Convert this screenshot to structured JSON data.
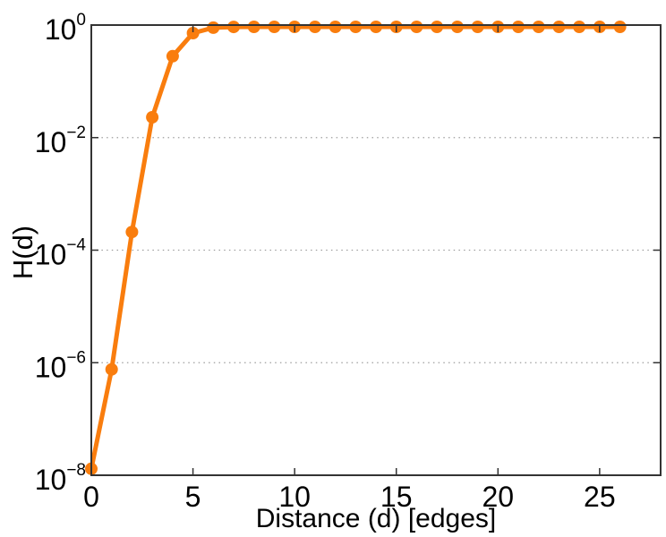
{
  "style": {
    "background": "#FFFFFF",
    "series_color": "#F97D0E",
    "axis_color": "#333333",
    "grid_color": "#9E9E9E",
    "text_color": "#000000"
  },
  "chart_data": {
    "type": "line",
    "title": "",
    "xlabel": "Distance (d) [edges]",
    "ylabel": "H(d)",
    "x": [
      0,
      1,
      2,
      3,
      4,
      5,
      6,
      7,
      8,
      9,
      10,
      11,
      12,
      13,
      14,
      15,
      16,
      17,
      18,
      19,
      20,
      21,
      22,
      23,
      24,
      25,
      26
    ],
    "y": [
      1.3e-08,
      7.6e-07,
      0.00021,
      0.023,
      0.28,
      0.72,
      0.9,
      0.925,
      0.93,
      0.93,
      0.93,
      0.93,
      0.93,
      0.93,
      0.93,
      0.93,
      0.93,
      0.93,
      0.93,
      0.93,
      0.93,
      0.93,
      0.93,
      0.93,
      0.93,
      0.93,
      0.93
    ],
    "xlim": [
      0,
      28
    ],
    "ylim": [
      1e-08,
      1
    ],
    "y_scale": "log10",
    "xticks": [
      0,
      5,
      10,
      15,
      20,
      25
    ],
    "ytick_exponents": [
      0,
      -2,
      -4,
      -6,
      -8
    ],
    "grid": "horizontal dotted lines at 10^-2, 10^-4, 10^-6",
    "legend": "none",
    "series": [
      {
        "name": "H(d)",
        "color": "#F97D0E",
        "marker": "filled-circle",
        "marker_radius": 7,
        "line_width": 5
      }
    ]
  }
}
